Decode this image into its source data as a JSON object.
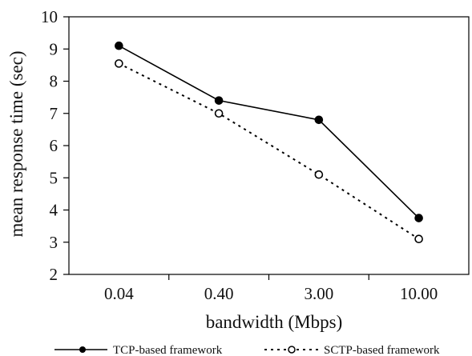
{
  "chart_data": {
    "type": "line",
    "title": "",
    "categories": [
      "0.04",
      "0.40",
      "3.00",
      "10.00"
    ],
    "xlabel": "bandwidth (Mbps)",
    "ylabel": "mean response time (sec)",
    "ylim": [
      2,
      10
    ],
    "yticks": [
      "2",
      "3",
      "4",
      "5",
      "6",
      "7",
      "8",
      "9",
      "10"
    ],
    "grid": false,
    "legend_position": "bottom",
    "series": [
      {
        "name": "TCP-based framework",
        "values": [
          9.1,
          7.4,
          6.8,
          3.75
        ],
        "line_style": "solid",
        "marker": "filled-circle",
        "color": "#000000"
      },
      {
        "name": "SCTP-based framework",
        "values": [
          8.55,
          7.0,
          5.1,
          3.1
        ],
        "line_style": "dotted",
        "marker": "open-circle",
        "color": "#000000"
      }
    ]
  }
}
